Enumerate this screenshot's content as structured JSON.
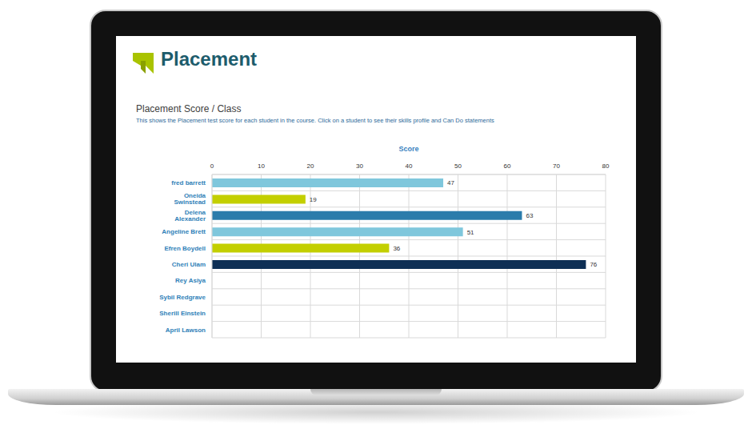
{
  "header": {
    "logo": "Placement"
  },
  "chart_data": {
    "type": "bar",
    "title": "Placement Score / Class",
    "subtitle": "This shows the Placement test score for each student in the course. Click on a student to see their skills profile and Can Do statements",
    "xlabel": "Score",
    "orientation": "horizontal",
    "categories": [
      "fred barrett",
      "Oneida Swinstead",
      "Delena Alexander",
      "Angeline Brett",
      "Efren Boydell",
      "Cheri Ulam",
      "Rey Asiya",
      "Sybil Redgrave",
      "Sherill Einstein",
      "April Lawson"
    ],
    "values": [
      47,
      19,
      63,
      51,
      36,
      76,
      null,
      null,
      null,
      null
    ],
    "colors": [
      "#7fc7dc",
      "#c3cf00",
      "#2b7cab",
      "#7fc7dc",
      "#c3cf00",
      "#0e2f55",
      null,
      null,
      null,
      null
    ],
    "xlim": [
      0,
      80
    ],
    "xticks": [
      0,
      10,
      20,
      30,
      40,
      50,
      60,
      70,
      80
    ],
    "grid": true,
    "data_labels": true
  }
}
